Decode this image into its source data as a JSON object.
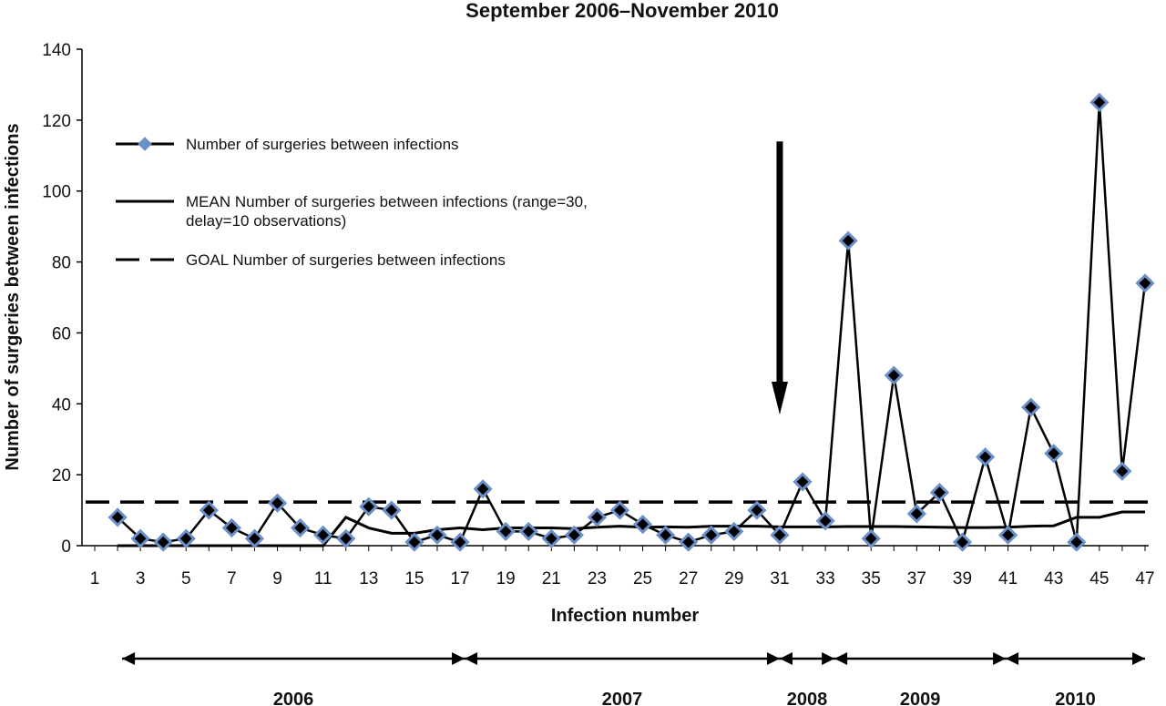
{
  "chart_data": {
    "type": "line",
    "title": "September 2006–November 2010",
    "xlabel": "Infection number",
    "ylabel": "Number of surgeries between infections",
    "xlim": [
      1,
      47
    ],
    "ylim": [
      0,
      140
    ],
    "x_ticks": [
      1,
      3,
      5,
      7,
      9,
      11,
      13,
      15,
      17,
      19,
      21,
      23,
      25,
      27,
      29,
      31,
      33,
      35,
      37,
      39,
      41,
      43,
      45,
      47
    ],
    "y_ticks": [
      0,
      20,
      40,
      60,
      80,
      100,
      120,
      140
    ],
    "grid": false,
    "legend_position": "top-left",
    "series": [
      {
        "name": "Number of surgeries between infections",
        "style": "line-with-diamond-markers",
        "line_color": "#000000",
        "marker_fill": "#000000",
        "marker_edge": "#6b8fc8",
        "x": [
          2,
          3,
          4,
          5,
          6,
          7,
          8,
          9,
          10,
          11,
          12,
          13,
          14,
          15,
          16,
          17,
          18,
          19,
          20,
          21,
          22,
          23,
          24,
          25,
          26,
          27,
          28,
          29,
          30,
          31,
          32,
          33,
          34,
          35,
          36,
          37,
          38,
          39,
          40,
          41,
          42,
          43,
          44,
          45,
          46,
          47
        ],
        "values": [
          8,
          2,
          1,
          2,
          10,
          5,
          2,
          12,
          5,
          3,
          2,
          11,
          10,
          1,
          3,
          1,
          16,
          4,
          4,
          2,
          3,
          8,
          10,
          6,
          3,
          1,
          3,
          4,
          10,
          3,
          18,
          7,
          86,
          2,
          48,
          9,
          15,
          1,
          25,
          3,
          39,
          26,
          1,
          125,
          21,
          74
        ]
      },
      {
        "name": "MEAN Number of surgeries between infections (range=30, delay=10 observations)",
        "legend_lines": [
          "MEAN Number of surgeries between infections (range=30,",
          "delay=10 observations)"
        ],
        "style": "solid",
        "line_color": "#000000",
        "x": [
          2,
          3,
          4,
          5,
          6,
          7,
          8,
          9,
          10,
          11,
          12,
          13,
          14,
          15,
          16,
          17,
          18,
          19,
          20,
          21,
          22,
          23,
          24,
          25,
          26,
          27,
          28,
          29,
          30,
          31,
          32,
          33,
          34,
          35,
          36,
          37,
          38,
          39,
          40,
          41,
          42,
          43,
          44,
          45,
          46,
          47
        ],
        "values": [
          0,
          0,
          0,
          0,
          0,
          0,
          0,
          0,
          0,
          0,
          8,
          5,
          3.5,
          3.5,
          4.5,
          5,
          4.5,
          5,
          5,
          5,
          4.8,
          5.2,
          5.5,
          5.2,
          5.3,
          5.2,
          5.5,
          5.5,
          5.5,
          5.3,
          5.3,
          5.3,
          5.4,
          5.4,
          5.4,
          5.3,
          5.2,
          5.1,
          5.1,
          5.2,
          5.5,
          5.6,
          8,
          8,
          9.5,
          9.5
        ]
      },
      {
        "name": "GOAL Number of surgeries between infections",
        "style": "dashed",
        "line_color": "#000000",
        "x": [
          1,
          47
        ],
        "values": [
          12.3,
          12.3
        ]
      }
    ],
    "annotations": [
      {
        "type": "down-arrow",
        "x": 31,
        "y_from": 114,
        "y_to": 37
      }
    ],
    "periods": [
      {
        "label": "2006",
        "from": 2.2,
        "to": 17.2
      },
      {
        "label": "2007",
        "from": 17.2,
        "to": 31
      },
      {
        "label": "2008",
        "from": 31,
        "to": 33.4
      },
      {
        "label": "2009",
        "from": 33.4,
        "to": 40.9
      },
      {
        "label": "2010",
        "from": 40.9,
        "to": 47
      }
    ]
  }
}
